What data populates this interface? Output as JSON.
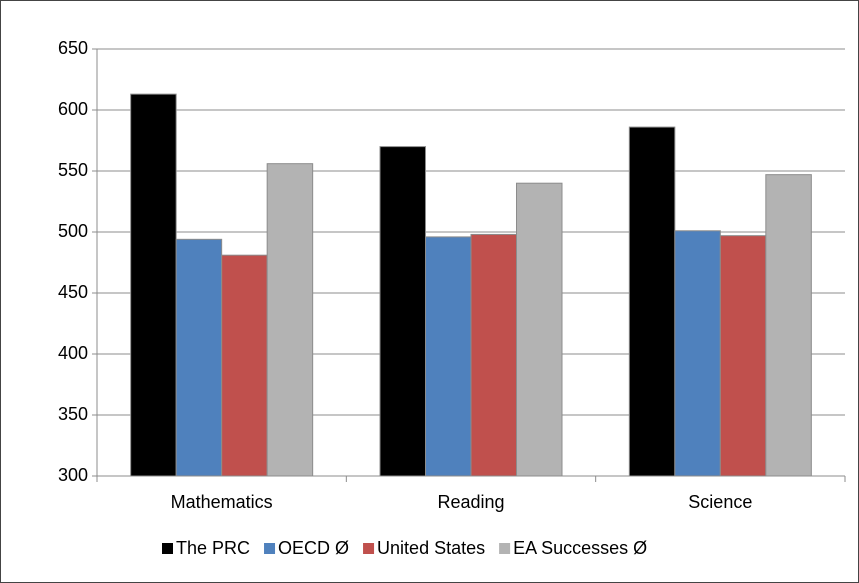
{
  "chart_data": {
    "type": "bar",
    "categories": [
      "Mathematics",
      "Reading",
      "Science"
    ],
    "series": [
      {
        "name": "The PRC",
        "color": "#000000",
        "values": [
          613,
          570,
          586
        ]
      },
      {
        "name": "OECD Ø",
        "color": "#4f81bd",
        "values": [
          494,
          496,
          501
        ]
      },
      {
        "name": "United States",
        "color": "#c0504d",
        "values": [
          481,
          498,
          497
        ]
      },
      {
        "name": "EA Successes Ø",
        "color": "#b3b3b3",
        "values": [
          556,
          540,
          547
        ]
      }
    ],
    "ylim": [
      300,
      650
    ],
    "yticks": [
      300,
      350,
      400,
      450,
      500,
      550,
      600,
      650
    ],
    "grid": true,
    "legend": "bottom"
  }
}
